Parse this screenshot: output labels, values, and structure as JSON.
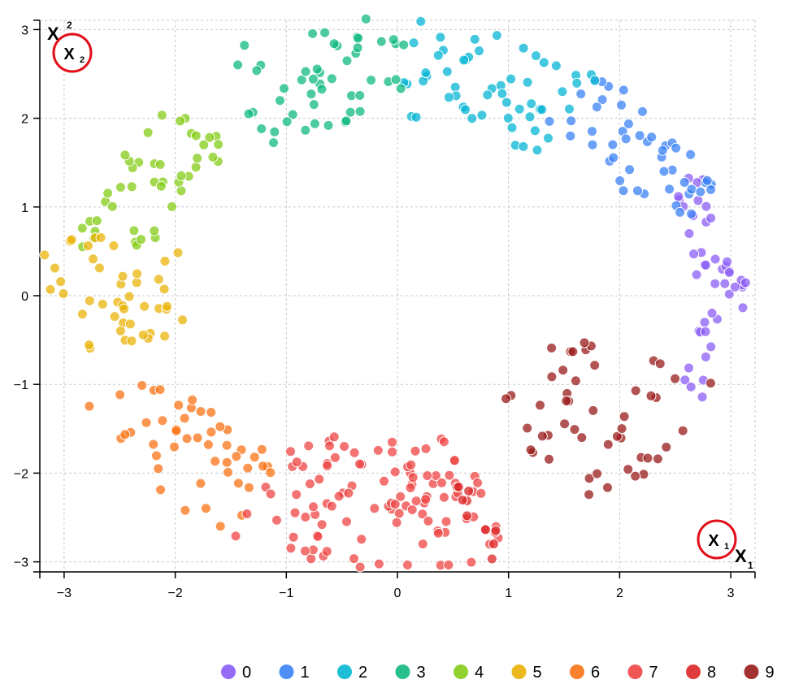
{
  "chart_data": {
    "type": "scatter",
    "title": "",
    "xlabel": "x1",
    "ylabel": "x2",
    "xlim": [
      -3.25,
      3.25
    ],
    "ylim": [
      -3.12,
      3.12
    ],
    "x_ticks": [
      "−3",
      "−2",
      "−1",
      "0",
      "1",
      "2",
      "3"
    ],
    "y_ticks": [
      "3",
      "2",
      "1",
      "0",
      "−1",
      "−2",
      "−3"
    ],
    "grid": true,
    "legend_position": "bottom-right",
    "axis_markers": {
      "x_corner": {
        "main": "X",
        "sub": "1"
      },
      "y_corner": {
        "main": "X",
        "sub": "2"
      }
    },
    "colors": {
      "0": "#8b5cf6",
      "1": "#3b82f6",
      "2": "#06b6d4",
      "3": "#10b981",
      "4": "#84cc16",
      "5": "#eab308",
      "6": "#f97316",
      "7": "#ef4444",
      "8": "#dc2626",
      "9": "#991b1b"
    },
    "series": [
      {
        "name": "0",
        "angle_range": [
          -0.47,
          0.47
        ],
        "radius_range": [
          2.7,
          3.15
        ],
        "count": 45
      },
      {
        "name": "1",
        "angle_range": [
          0.32,
          0.98
        ],
        "radius_range": [
          2.35,
          3.1
        ],
        "count": 48
      },
      {
        "name": "2",
        "angle_range": [
          0.9,
          1.55
        ],
        "radius_range": [
          2.0,
          3.15
        ],
        "count": 55
      },
      {
        "name": "3",
        "angle_range": [
          1.55,
          2.15
        ],
        "radius_range": [
          2.0,
          3.15
        ],
        "count": 50
      },
      {
        "name": "4",
        "angle_range": [
          2.3,
          2.95
        ],
        "radius_range": [
          2.2,
          2.95
        ],
        "count": 45
      },
      {
        "name": "5",
        "angle_range": [
          2.9,
          3.37
        ],
        "radius_range": [
          1.95,
          3.25
        ],
        "count": 45
      },
      {
        "name": "6",
        "angle_range": [
          3.55,
          4.2
        ],
        "radius_range": [
          2.1,
          3.1
        ],
        "count": 48
      },
      {
        "name": "7",
        "angle_range": [
          4.2,
          5.05
        ],
        "radius_range": [
          1.65,
          3.12
        ],
        "count": 110
      },
      {
        "name": "8",
        "angle_range": [
          4.95,
          5.05
        ],
        "radius_range": [
          2.0,
          3.1
        ],
        "count": 10
      },
      {
        "name": "9",
        "angle_range": [
          5.3,
          5.98
        ],
        "radius_range": [
          1.5,
          3.0
        ],
        "count": 50
      }
    ],
    "legend": [
      {
        "name": "0",
        "label": "0"
      },
      {
        "name": "1",
        "label": "1"
      },
      {
        "name": "2",
        "label": "2"
      },
      {
        "name": "3",
        "label": "3"
      },
      {
        "name": "4",
        "label": "4"
      },
      {
        "name": "5",
        "label": "5"
      },
      {
        "name": "6",
        "label": "6"
      },
      {
        "name": "7",
        "label": "7"
      },
      {
        "name": "8",
        "label": "8"
      },
      {
        "name": "9",
        "label": "9"
      }
    ]
  }
}
